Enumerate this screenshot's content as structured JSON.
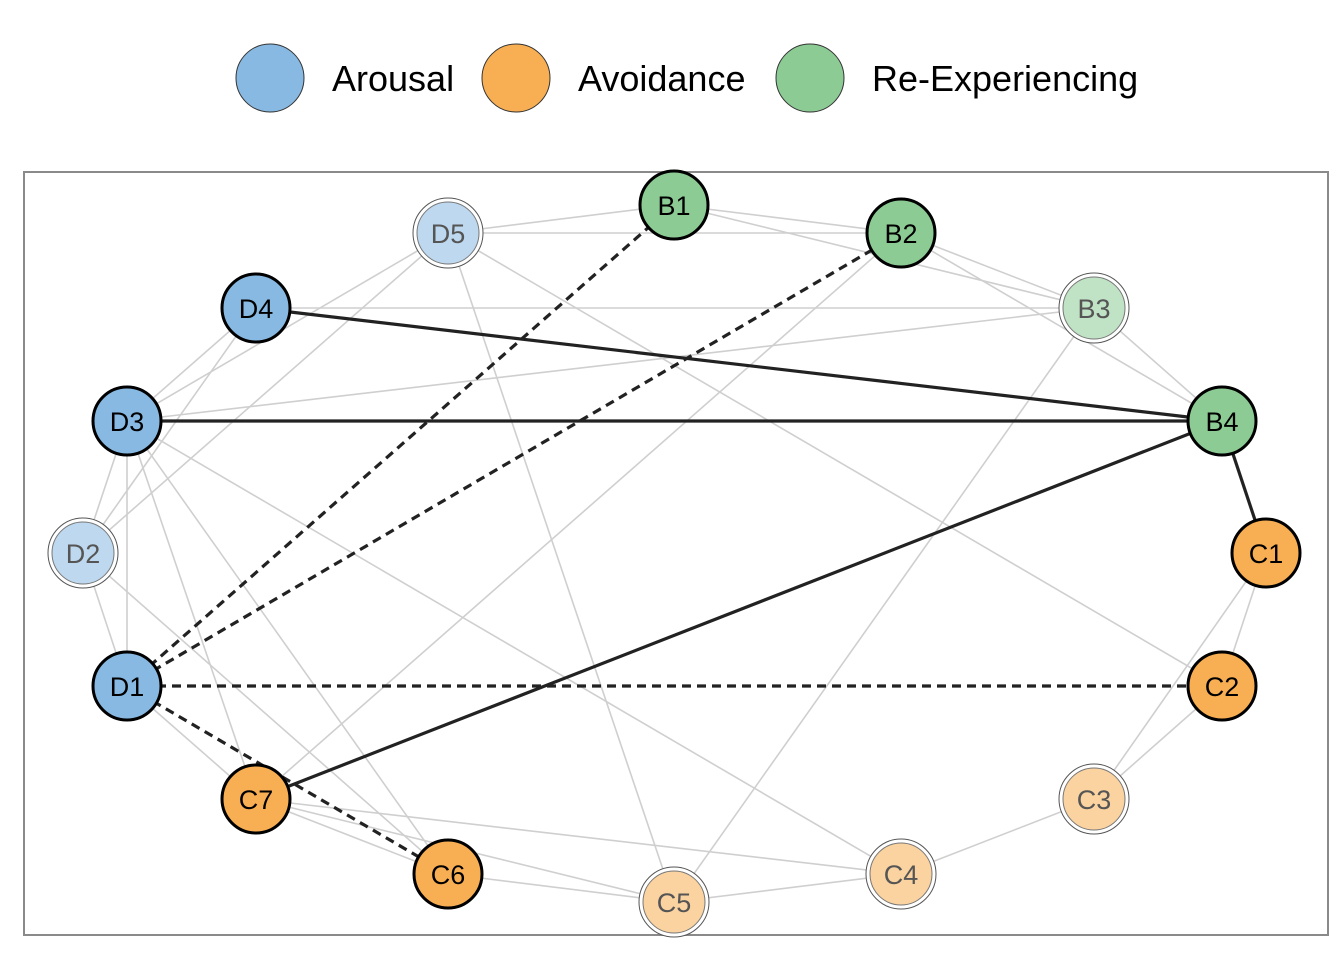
{
  "legend": {
    "items": [
      {
        "label": "Arousal",
        "color": "#88b9e2"
      },
      {
        "label": "Avoidance",
        "color": "#f8ae52"
      },
      {
        "label": "Re-Experiencing",
        "color": "#8dcb95"
      }
    ]
  },
  "network": {
    "nodes": [
      {
        "id": "B1",
        "group": "Re-Experiencing",
        "faded": false
      },
      {
        "id": "B2",
        "group": "Re-Experiencing",
        "faded": false
      },
      {
        "id": "B3",
        "group": "Re-Experiencing",
        "faded": true
      },
      {
        "id": "B4",
        "group": "Re-Experiencing",
        "faded": false
      },
      {
        "id": "C1",
        "group": "Avoidance",
        "faded": false
      },
      {
        "id": "C2",
        "group": "Avoidance",
        "faded": false
      },
      {
        "id": "C3",
        "group": "Avoidance",
        "faded": true
      },
      {
        "id": "C4",
        "group": "Avoidance",
        "faded": true
      },
      {
        "id": "C5",
        "group": "Avoidance",
        "faded": true
      },
      {
        "id": "C6",
        "group": "Avoidance",
        "faded": false
      },
      {
        "id": "C7",
        "group": "Avoidance",
        "faded": false
      },
      {
        "id": "D1",
        "group": "Arousal",
        "faded": false
      },
      {
        "id": "D2",
        "group": "Arousal",
        "faded": true
      },
      {
        "id": "D3",
        "group": "Arousal",
        "faded": false
      },
      {
        "id": "D4",
        "group": "Arousal",
        "faded": false
      },
      {
        "id": "D5",
        "group": "Arousal",
        "faded": true
      }
    ],
    "strong_edges": [
      {
        "from": "D4",
        "to": "B4",
        "style": "solid"
      },
      {
        "from": "D3",
        "to": "B4",
        "style": "solid"
      },
      {
        "from": "C7",
        "to": "B4",
        "style": "solid"
      },
      {
        "from": "B4",
        "to": "C1",
        "style": "solid"
      },
      {
        "from": "D1",
        "to": "B1",
        "style": "dashed"
      },
      {
        "from": "D1",
        "to": "B2",
        "style": "dashed"
      },
      {
        "from": "D1",
        "to": "C2",
        "style": "dashed"
      },
      {
        "from": "D1",
        "to": "C6",
        "style": "dashed"
      }
    ],
    "weak_edges": [
      [
        "D5",
        "B1"
      ],
      [
        "D5",
        "B2"
      ],
      [
        "D5",
        "D2"
      ],
      [
        "D5",
        "D3"
      ],
      [
        "D5",
        "C5"
      ],
      [
        "D5",
        "C2"
      ],
      [
        "B1",
        "B2"
      ],
      [
        "B1",
        "B3"
      ],
      [
        "B2",
        "B3"
      ],
      [
        "B2",
        "B4"
      ],
      [
        "B2",
        "C7"
      ],
      [
        "B3",
        "B4"
      ],
      [
        "B3",
        "D4"
      ],
      [
        "B3",
        "D3"
      ],
      [
        "B3",
        "C5"
      ],
      [
        "D4",
        "D3"
      ],
      [
        "D4",
        "D2"
      ],
      [
        "D3",
        "D2"
      ],
      [
        "D3",
        "D1"
      ],
      [
        "D3",
        "C7"
      ],
      [
        "D3",
        "C6"
      ],
      [
        "D3",
        "C4"
      ],
      [
        "D2",
        "D1"
      ],
      [
        "D2",
        "C6"
      ],
      [
        "D1",
        "C7"
      ],
      [
        "C1",
        "C2"
      ],
      [
        "C1",
        "C3"
      ],
      [
        "C2",
        "C3"
      ],
      [
        "C3",
        "C4"
      ],
      [
        "C4",
        "C5"
      ],
      [
        "C5",
        "C6"
      ],
      [
        "C5",
        "C7"
      ],
      [
        "C6",
        "C7"
      ],
      [
        "C7",
        "C4"
      ]
    ],
    "colors": {
      "Arousal": "#88b9e2",
      "Avoidance": "#f8ae52",
      "Re-Experiencing": "#8dcb95",
      "edge_strong": "#222222",
      "edge_weak": "#cfcfcf",
      "frame": "#8a8a8a"
    }
  }
}
